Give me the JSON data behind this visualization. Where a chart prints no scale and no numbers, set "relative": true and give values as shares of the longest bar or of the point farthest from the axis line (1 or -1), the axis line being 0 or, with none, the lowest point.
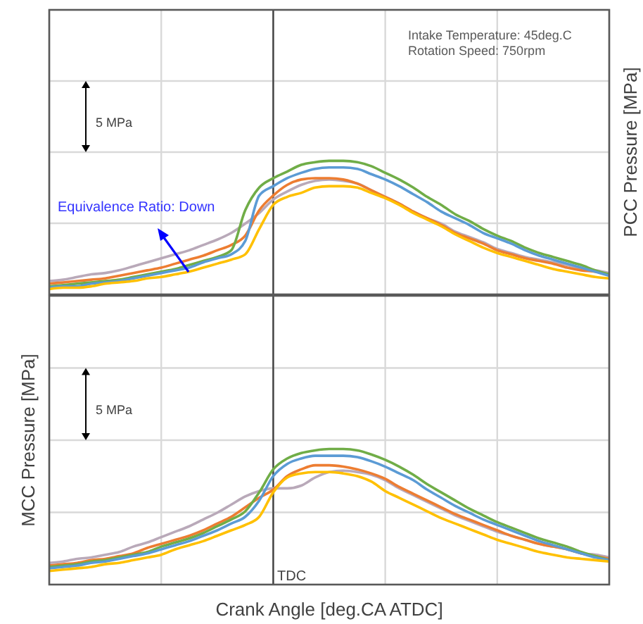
{
  "chart_data": [
    {
      "type": "line",
      "relative": true,
      "grid": true,
      "ylabel": "PCC Pressure [MPa]",
      "categories": [
        null,
        null,
        null,
        null,
        null,
        null,
        null,
        null,
        null,
        null,
        null,
        null,
        null,
        null,
        null,
        null,
        null,
        null,
        null,
        null,
        null,
        null,
        null,
        null,
        null,
        null,
        null,
        null,
        null,
        null,
        null,
        null,
        null,
        null,
        null,
        null,
        null,
        null,
        null,
        null,
        null
      ],
      "series": [
        {
          "color": "#b9a9b9",
          "values": [
            0.1,
            0.11,
            0.13,
            0.15,
            0.16,
            0.18,
            0.21,
            0.24,
            0.27,
            0.3,
            0.33,
            0.37,
            0.41,
            0.46,
            0.53,
            0.61,
            0.71,
            0.77,
            0.82,
            0.85,
            0.86,
            0.85,
            0.83,
            0.78,
            0.73,
            0.68,
            0.62,
            0.57,
            0.53,
            0.47,
            0.43,
            0.39,
            0.34,
            0.31,
            0.28,
            0.26,
            0.24,
            0.22,
            0.19,
            0.18,
            0.16
          ]
        },
        {
          "color": "#ed7d31",
          "values": [
            0.08,
            0.09,
            0.1,
            0.11,
            0.12,
            0.14,
            0.16,
            0.18,
            0.2,
            0.23,
            0.26,
            0.29,
            0.33,
            0.37,
            0.44,
            0.63,
            0.74,
            0.82,
            0.86,
            0.87,
            0.87,
            0.86,
            0.83,
            0.78,
            0.73,
            0.68,
            0.62,
            0.57,
            0.52,
            0.46,
            0.42,
            0.38,
            0.33,
            0.3,
            0.27,
            0.25,
            0.23,
            0.2,
            0.18,
            0.17,
            0.15
          ]
        },
        {
          "color": "#70ad47",
          "values": [
            0.06,
            0.07,
            0.08,
            0.09,
            0.1,
            0.11,
            0.13,
            0.15,
            0.17,
            0.19,
            0.22,
            0.25,
            0.28,
            0.33,
            0.63,
            0.8,
            0.87,
            0.92,
            0.97,
            0.99,
            1,
            1,
            0.99,
            0.96,
            0.91,
            0.86,
            0.8,
            0.73,
            0.67,
            0.6,
            0.55,
            0.49,
            0.44,
            0.4,
            0.35,
            0.31,
            0.28,
            0.25,
            0.22,
            0.18,
            0.15
          ]
        },
        {
          "color": "#5b9bd5",
          "values": [
            0.05,
            0.06,
            0.06,
            0.08,
            0.09,
            0.1,
            0.12,
            0.14,
            0.16,
            0.18,
            0.2,
            0.24,
            0.27,
            0.3,
            0.4,
            0.74,
            0.81,
            0.87,
            0.91,
            0.94,
            0.95,
            0.95,
            0.94,
            0.9,
            0.86,
            0.81,
            0.75,
            0.69,
            0.62,
            0.57,
            0.52,
            0.46,
            0.42,
            0.38,
            0.33,
            0.29,
            0.26,
            0.23,
            0.2,
            0.17,
            0.14
          ]
        },
        {
          "color": "#ffc000",
          "values": [
            0.04,
            0.05,
            0.05,
            0.06,
            0.08,
            0.09,
            0.1,
            0.12,
            0.13,
            0.15,
            0.17,
            0.2,
            0.23,
            0.26,
            0.3,
            0.49,
            0.67,
            0.73,
            0.76,
            0.8,
            0.81,
            0.81,
            0.8,
            0.76,
            0.72,
            0.67,
            0.61,
            0.56,
            0.51,
            0.45,
            0.4,
            0.35,
            0.31,
            0.28,
            0.25,
            0.22,
            0.19,
            0.17,
            0.15,
            0.13,
            0.12
          ]
        }
      ],
      "annotations": [
        "Intake Temperature: 45deg.C",
        "Rotation Speed: 750rpm",
        "5 MPa",
        "Equivalence Ratio: Down"
      ]
    },
    {
      "type": "line",
      "relative": true,
      "grid": true,
      "ylabel": "MCC Pressure [MPa]",
      "xlabel": "Crank Angle [deg.CA ATDC]",
      "categories": [
        null,
        null,
        null,
        null,
        null,
        null,
        null,
        null,
        null,
        null,
        null,
        null,
        null,
        null,
        null,
        null,
        null,
        null,
        null,
        null,
        null,
        null,
        null,
        null,
        null,
        null,
        null,
        null,
        null,
        null,
        null,
        null,
        null,
        null,
        null,
        null,
        null,
        null,
        null,
        null,
        null
      ],
      "series": [
        {
          "color": "#b9a9b9",
          "values": [
            0.16,
            0.17,
            0.19,
            0.2,
            0.22,
            0.24,
            0.28,
            0.31,
            0.35,
            0.39,
            0.43,
            0.48,
            0.53,
            0.59,
            0.65,
            0.69,
            0.71,
            0.71,
            0.73,
            0.79,
            0.83,
            0.84,
            0.83,
            0.81,
            0.77,
            0.71,
            0.66,
            0.61,
            0.56,
            0.51,
            0.47,
            0.43,
            0.39,
            0.36,
            0.33,
            0.3,
            0.28,
            0.26,
            0.23,
            0.22,
            0.2
          ]
        },
        {
          "color": "#ed7d31",
          "values": [
            0.14,
            0.15,
            0.16,
            0.18,
            0.19,
            0.21,
            0.23,
            0.27,
            0.3,
            0.33,
            0.36,
            0.4,
            0.45,
            0.5,
            0.57,
            0.64,
            0.7,
            0.8,
            0.85,
            0.88,
            0.88,
            0.87,
            0.85,
            0.82,
            0.78,
            0.72,
            0.67,
            0.62,
            0.57,
            0.52,
            0.48,
            0.44,
            0.4,
            0.36,
            0.33,
            0.3,
            0.28,
            0.26,
            0.23,
            0.21,
            0.19
          ]
        },
        {
          "color": "#70ad47",
          "values": [
            0.13,
            0.14,
            0.15,
            0.17,
            0.18,
            0.2,
            0.22,
            0.24,
            0.28,
            0.31,
            0.34,
            0.38,
            0.43,
            0.48,
            0.54,
            0.68,
            0.85,
            0.93,
            0.97,
            0.99,
            1,
            1,
            0.99,
            0.96,
            0.92,
            0.87,
            0.81,
            0.74,
            0.68,
            0.62,
            0.56,
            0.51,
            0.46,
            0.42,
            0.38,
            0.34,
            0.31,
            0.28,
            0.24,
            0.21,
            0.18
          ]
        },
        {
          "color": "#5b9bd5",
          "values": [
            0.12,
            0.13,
            0.14,
            0.16,
            0.17,
            0.19,
            0.21,
            0.23,
            0.26,
            0.29,
            0.32,
            0.36,
            0.4,
            0.45,
            0.5,
            0.62,
            0.8,
            0.89,
            0.93,
            0.95,
            0.95,
            0.95,
            0.94,
            0.91,
            0.87,
            0.82,
            0.77,
            0.7,
            0.64,
            0.58,
            0.53,
            0.48,
            0.44,
            0.4,
            0.36,
            0.32,
            0.29,
            0.26,
            0.23,
            0.2,
            0.18
          ]
        },
        {
          "color": "#ffc000",
          "values": [
            0.1,
            0.11,
            0.12,
            0.13,
            0.15,
            0.16,
            0.18,
            0.2,
            0.22,
            0.26,
            0.29,
            0.32,
            0.36,
            0.4,
            0.44,
            0.5,
            0.68,
            0.79,
            0.82,
            0.83,
            0.83,
            0.82,
            0.8,
            0.76,
            0.69,
            0.64,
            0.59,
            0.54,
            0.49,
            0.45,
            0.41,
            0.37,
            0.33,
            0.3,
            0.27,
            0.24,
            0.22,
            0.2,
            0.19,
            0.18,
            0.17
          ]
        }
      ],
      "annotations": [
        "5 MPa",
        "TDC"
      ]
    }
  ]
}
